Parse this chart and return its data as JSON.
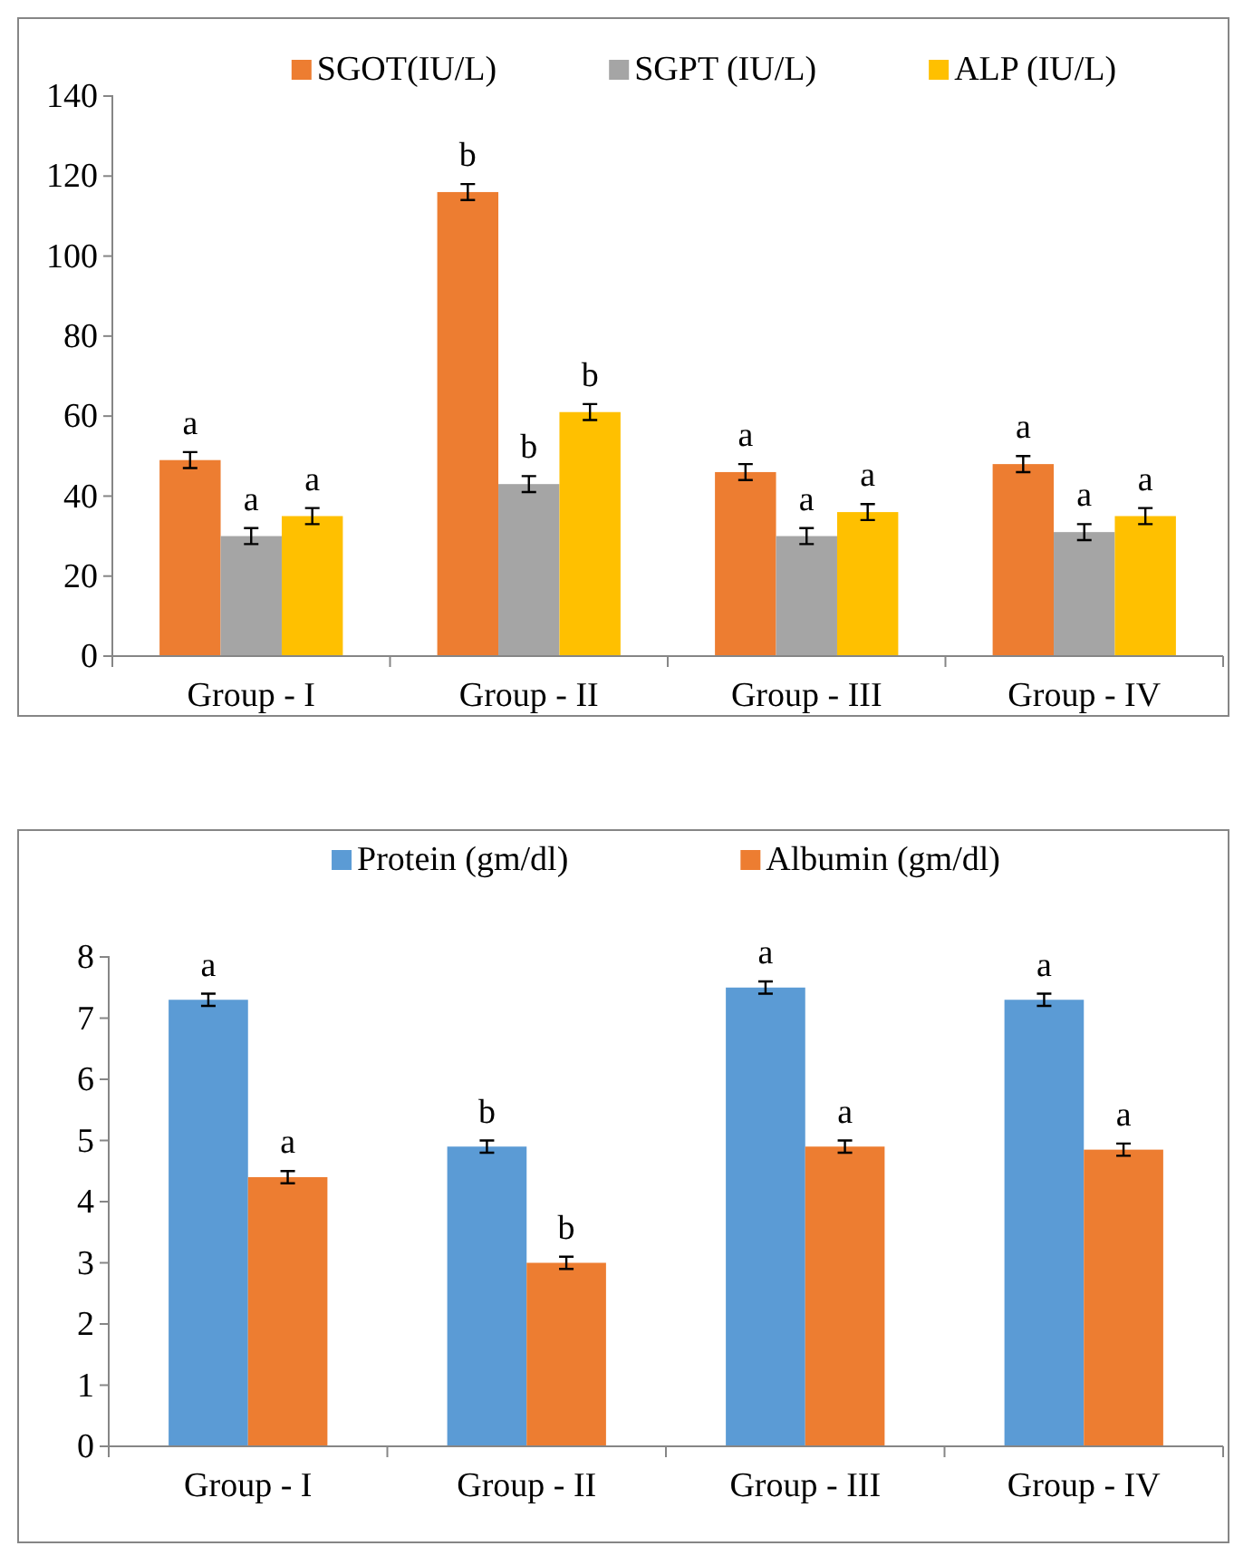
{
  "chart_data": [
    {
      "type": "bar",
      "categories": [
        "Group - I",
        "Group - II",
        "Group - III",
        "Group - IV"
      ],
      "series": [
        {
          "name": "SGOT(IU/L)",
          "color": "#ed7d31",
          "values": [
            49,
            116,
            46,
            48
          ],
          "errors": [
            2,
            2,
            2,
            2
          ]
        },
        {
          "name": "SGPT (IU/L)",
          "color": "#a5a5a5",
          "values": [
            30,
            43,
            30,
            31
          ],
          "errors": [
            2,
            2,
            2,
            2
          ]
        },
        {
          "name": "ALP (IU/L)",
          "color": "#ffc000",
          "values": [
            35,
            61,
            36,
            35
          ],
          "errors": [
            2,
            2,
            2,
            2
          ]
        }
      ],
      "ylim": [
        0,
        140
      ],
      "yticks": [
        0,
        20,
        40,
        60,
        80,
        100,
        120,
        140
      ],
      "legend": "top",
      "annotations": [
        "a",
        "b",
        "a",
        "a",
        "a",
        "b",
        "a",
        "a",
        "a",
        "b",
        "a",
        "a"
      ]
    },
    {
      "type": "bar",
      "categories": [
        "Group - I",
        "Group - II",
        "Group - III",
        "Group - IV"
      ],
      "series": [
        {
          "name": "Protein (gm/dl)",
          "color": "#5b9bd5",
          "values": [
            7.3,
            4.9,
            7.5,
            7.3
          ],
          "errors": [
            0.1,
            0.1,
            0.1,
            0.1
          ]
        },
        {
          "name": "Albumin (gm/dl)",
          "color": "#ed7d31",
          "values": [
            4.4,
            3.0,
            4.9,
            4.85
          ],
          "errors": [
            0.1,
            0.1,
            0.1,
            0.1
          ]
        }
      ],
      "ylim": [
        0,
        8
      ],
      "yticks": [
        0,
        1,
        2,
        3,
        4,
        5,
        6,
        7,
        8
      ],
      "legend": "top",
      "annotations": [
        "a",
        "b",
        "a",
        "a",
        "a",
        "b",
        "a",
        "a"
      ]
    }
  ]
}
